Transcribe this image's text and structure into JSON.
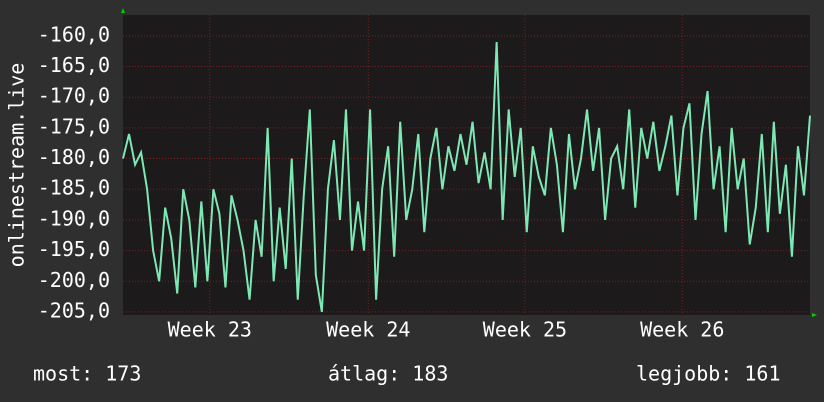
{
  "chart_data": {
    "type": "line",
    "y_label": "onlinestream.live",
    "x": [
      0,
      1,
      2,
      3,
      4,
      5,
      6,
      7,
      8,
      9,
      10,
      11,
      12,
      13,
      14,
      15,
      16,
      17,
      18,
      19,
      20,
      21,
      22,
      23,
      24,
      25,
      26,
      27,
      28,
      29,
      30,
      31,
      32,
      33,
      34,
      35,
      36,
      37,
      38,
      39,
      40,
      41,
      42,
      43,
      44,
      45,
      46,
      47,
      48,
      49,
      50,
      51,
      52,
      53,
      54,
      55,
      56,
      57,
      58,
      59,
      60,
      61,
      62,
      63,
      64,
      65,
      66,
      67,
      68,
      69,
      70,
      71,
      72,
      73,
      74,
      75,
      76,
      77,
      78,
      79,
      80,
      81,
      82,
      83,
      84,
      85,
      86,
      87,
      88,
      89,
      90,
      91,
      92,
      93,
      94,
      95,
      96,
      97,
      98,
      99,
      100,
      101,
      102,
      103,
      104,
      105,
      106,
      107,
      108,
      109,
      110,
      111,
      112,
      113,
      114
    ],
    "series": [
      {
        "name": "onlinestream.live",
        "color": "#7ee8b4",
        "values": [
          -180,
          -176,
          -181,
          -179,
          -185,
          -195,
          -200,
          -188,
          -193,
          -202,
          -185,
          -190,
          -201,
          -187,
          -200,
          -185,
          -189,
          -201,
          -186,
          -190,
          -195,
          -203,
          -190,
          -196,
          -175,
          -200,
          -188,
          -198,
          -180,
          -203,
          -186,
          -172,
          -199,
          -205,
          -185,
          -177,
          -190,
          -172,
          -195,
          -187,
          -195,
          -172,
          -203,
          -185,
          -178,
          -196,
          -174,
          -190,
          -185,
          -176,
          -192,
          -180,
          -175,
          -185,
          -178,
          -182,
          -176,
          -181,
          -174,
          -184,
          -179,
          -185,
          -161,
          -190,
          -172,
          -183,
          -175,
          -192,
          -178,
          -183,
          -186,
          -175,
          -181,
          -192,
          -176,
          -185,
          -180,
          -172,
          -182,
          -175,
          -190,
          -180,
          -178,
          -185,
          -172,
          -188,
          -175,
          -180,
          -174,
          -182,
          -178,
          -173,
          -186,
          -175,
          -171,
          -190,
          -176,
          -169,
          -185,
          -178,
          -192,
          -175,
          -185,
          -180,
          -194,
          -188,
          -176,
          -192,
          -174,
          -189,
          -181,
          -196,
          -178,
          -186,
          -173
        ]
      }
    ],
    "xlim": [
      0,
      114
    ],
    "xticks": [
      {
        "value": 14.4,
        "label": "Week 23"
      },
      {
        "value": 40.7,
        "label": "Week 24"
      },
      {
        "value": 66.7,
        "label": "Week 25"
      },
      {
        "value": 92.8,
        "label": "Week 26"
      }
    ],
    "ylim": [
      -205.5,
      -156.6
    ],
    "yticks": [
      {
        "value": -205,
        "label": "-205,0"
      },
      {
        "value": -200,
        "label": "-200,0"
      },
      {
        "value": -195,
        "label": "-195,0"
      },
      {
        "value": -190,
        "label": "-190,0"
      },
      {
        "value": -185,
        "label": "-185,0"
      },
      {
        "value": -180,
        "label": "-180,0"
      },
      {
        "value": -175,
        "label": "-175,0"
      },
      {
        "value": -170,
        "label": "-170,0"
      },
      {
        "value": -165,
        "label": "-165,0"
      },
      {
        "value": -160,
        "label": "-160,0"
      }
    ],
    "grid": true,
    "footer": [
      "most: 173",
      "átlag: 183",
      "legjobb: 161"
    ]
  }
}
